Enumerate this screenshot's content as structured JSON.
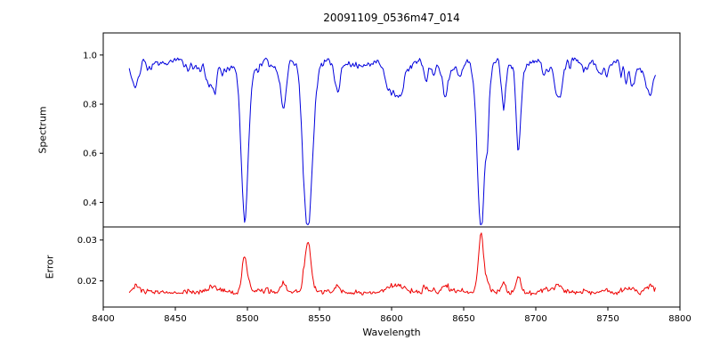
{
  "figure": {
    "title": "20091109_0536m47_014",
    "xlabel": "Wavelength",
    "ylabel_top": "Spectrum",
    "ylabel_bottom": "Error"
  },
  "chart_data": [
    {
      "type": "line",
      "name": "spectrum",
      "color": "#0000dd",
      "xlim": [
        8400,
        8800
      ],
      "x_range": [
        8418,
        8783
      ],
      "ylim": [
        0.3,
        1.09
      ],
      "x_ticks": [
        8400,
        8450,
        8500,
        8550,
        8600,
        8650,
        8700,
        8750,
        8800
      ],
      "y_ticks": [
        0.4,
        0.6,
        0.8,
        1.0
      ],
      "continuum": 0.968,
      "noise_amplitude": 0.022,
      "absorption_lines": [
        {
          "center": 8498,
          "depth": 0.52,
          "width": 2.4
        },
        {
          "center": 8542,
          "depth": 0.64,
          "width": 3.2
        },
        {
          "center": 8662,
          "depth": 0.63,
          "width": 2.6
        },
        {
          "center": 8688,
          "depth": 0.24,
          "width": 1.6
        }
      ],
      "minor_feature_count": 60,
      "seed": 42,
      "grid": false,
      "legend": null
    },
    {
      "type": "line",
      "name": "error",
      "color": "#ee0000",
      "xlim": [
        8400,
        8800
      ],
      "x_range": [
        8418,
        8783
      ],
      "ylim": [
        0.0136,
        0.0332
      ],
      "y_ticks": [
        0.02,
        0.03
      ],
      "baseline": 0.0168,
      "noise_amplitude": 0.0006,
      "spikes": [
        {
          "center": 8498,
          "height": 0.0072,
          "width": 1.8
        },
        {
          "center": 8542,
          "height": 0.0118,
          "width": 2.2
        },
        {
          "center": 8662,
          "height": 0.014,
          "width": 1.8
        },
        {
          "center": 8688,
          "height": 0.0028,
          "width": 1.6
        }
      ],
      "grid": false,
      "legend": null
    }
  ]
}
